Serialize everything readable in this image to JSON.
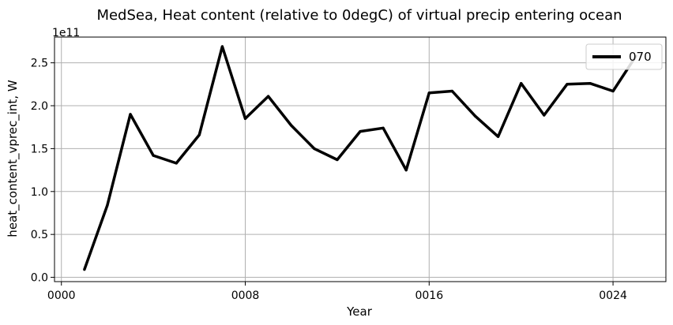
{
  "chart_data": {
    "type": "line",
    "title": "MedSea, Heat content (relative to 0degC) of virtual precip entering ocean",
    "xlabel": "Year",
    "ylabel": "heat_content_vprec_int, W",
    "y_offset_label": "1e11",
    "xlim": [
      -0.3,
      26.3
    ],
    "ylim": [
      -0.05,
      2.8
    ],
    "x_ticks": [
      0,
      8,
      16,
      24
    ],
    "x_tick_labels": [
      "0000",
      "0008",
      "0016",
      "0024"
    ],
    "y_ticks": [
      0.0,
      0.5,
      1.0,
      1.5,
      2.0,
      2.5
    ],
    "y_tick_labels": [
      "0.0",
      "0.5",
      "1.0",
      "1.5",
      "2.0",
      "2.5"
    ],
    "grid": true,
    "legend_position": "top-right",
    "series": [
      {
        "name": "070",
        "color": "#000000",
        "x": [
          1,
          2,
          3,
          4,
          5,
          6,
          7,
          8,
          9,
          10,
          11,
          12,
          13,
          14,
          15,
          16,
          17,
          18,
          19,
          20,
          21,
          22,
          23,
          24,
          25
        ],
        "values": [
          0.09,
          0.84,
          1.9,
          1.42,
          1.33,
          1.66,
          2.69,
          1.85,
          2.11,
          1.77,
          1.5,
          1.37,
          1.7,
          1.74,
          1.25,
          2.15,
          2.17,
          1.88,
          1.64,
          2.26,
          1.89,
          2.25,
          2.26,
          2.17,
          2.58
        ]
      }
    ]
  }
}
